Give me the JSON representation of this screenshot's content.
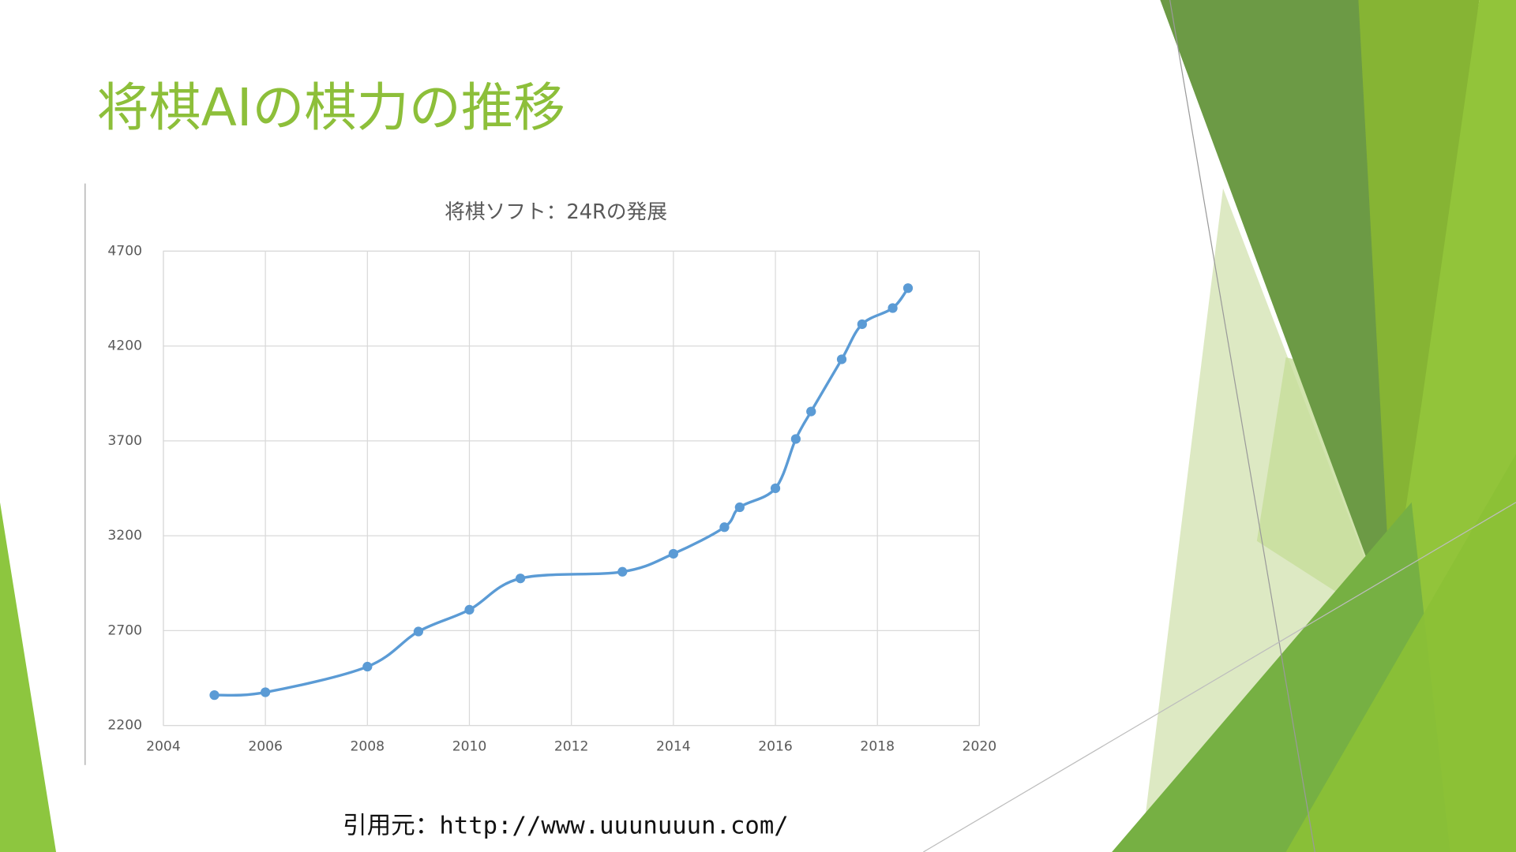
{
  "slide_title": "将棋AIの棋力の推移",
  "source": "引用元：http://www.uuunuuun.com/",
  "chart_data": {
    "type": "line",
    "title": "将棋ソフト：24Rの発展",
    "x": [
      2005,
      2006,
      2008,
      2009,
      2010,
      2011,
      2013,
      2014,
      2015,
      2015.3,
      2016,
      2016.4,
      2016.7,
      2017.3,
      2017.7,
      2018.3,
      2018.6
    ],
    "series": [
      {
        "color": "#5b9bd5",
        "values": [
          2360,
          2375,
          2510,
          2695,
          2810,
          2975,
          3010,
          3105,
          3245,
          3350,
          3450,
          3710,
          3855,
          4130,
          4315,
          4400,
          4505
        ]
      }
    ],
    "xlim": [
      2004,
      2020
    ],
    "xticks": [
      2004,
      2006,
      2008,
      2010,
      2012,
      2014,
      2016,
      2018,
      2020
    ],
    "ylim": [
      2200,
      4700
    ],
    "yticks": [
      2200,
      2700,
      3200,
      3700,
      4200,
      4700
    ],
    "grid": true,
    "smooth": true
  }
}
